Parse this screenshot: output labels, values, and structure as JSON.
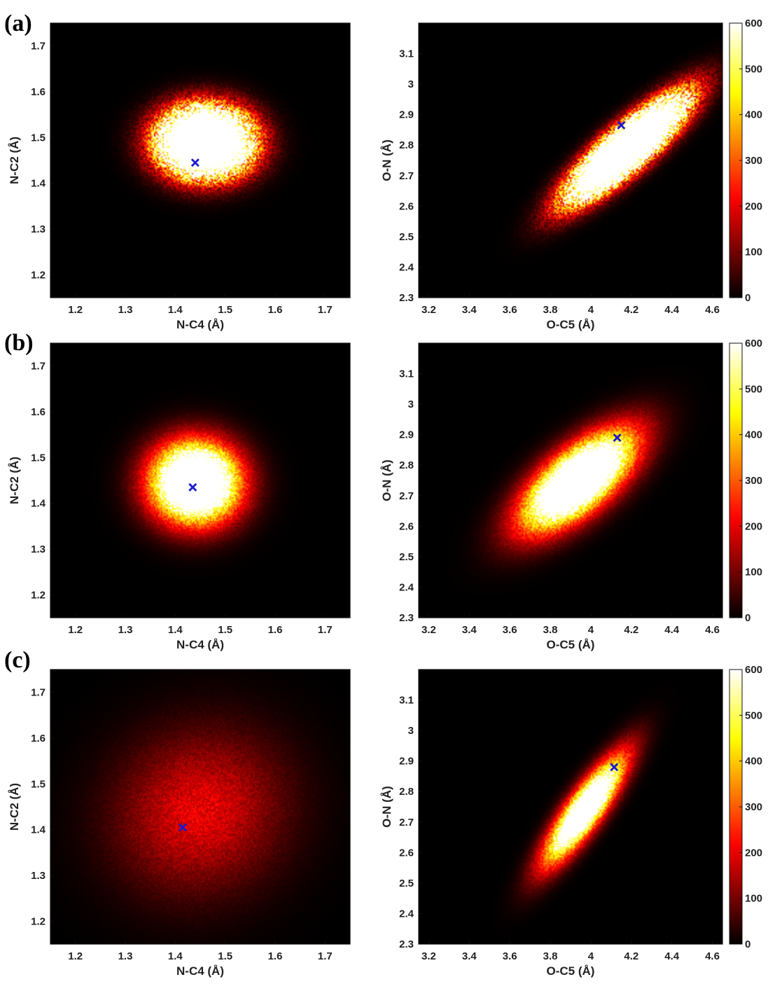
{
  "colors": {
    "background": "#ffffff",
    "marker": "#1a1acc",
    "colormap": "hot"
  },
  "chart_data": [
    {
      "panel": "(a)",
      "type": "heatmap",
      "colormap": "hot",
      "xlabel": "N-C4 (Å)",
      "ylabel": "N-C2 (Å)",
      "xlim": [
        1.15,
        1.75
      ],
      "ylim": [
        1.15,
        1.75
      ],
      "xticks": [
        1.2,
        1.3,
        1.4,
        1.5,
        1.6,
        1.7
      ],
      "yticks": [
        1.2,
        1.3,
        1.4,
        1.5,
        1.6,
        1.7
      ],
      "density": {
        "center": [
          1.46,
          1.49
        ],
        "sigma": [
          0.055,
          0.045
        ],
        "correlation": 0,
        "peak": 2500,
        "noise": 0.55
      },
      "marker": {
        "x": 1.44,
        "y": 1.445,
        "symbol": "x"
      }
    },
    {
      "panel": "(a)",
      "type": "heatmap",
      "colormap": "hot",
      "xlabel": "O-C5 (Å)",
      "ylabel": "O-N (Å)",
      "xlim": [
        3.15,
        4.65
      ],
      "ylim": [
        2.3,
        3.2
      ],
      "xticks": [
        3.2,
        3.4,
        3.6,
        3.8,
        4.0,
        4.2,
        4.4,
        4.6
      ],
      "yticks": [
        2.3,
        2.4,
        2.5,
        2.6,
        2.7,
        2.8,
        2.9,
        3.0,
        3.1
      ],
      "density": {
        "center": [
          4.18,
          2.79
        ],
        "sigma": [
          0.17,
          0.1
        ],
        "correlation": 0.86,
        "peak": 2600,
        "noise": 0.55
      },
      "marker": {
        "x": 4.15,
        "y": 2.865,
        "symbol": "x"
      },
      "colorbar": {
        "range": [
          0,
          600
        ],
        "ticks": [
          0,
          100,
          200,
          300,
          400,
          500,
          600
        ]
      }
    },
    {
      "panel": "(b)",
      "type": "heatmap",
      "colormap": "hot",
      "xlabel": "N-C4 (Å)",
      "ylabel": "N-C2 (Å)",
      "xlim": [
        1.15,
        1.75
      ],
      "ylim": [
        1.15,
        1.75
      ],
      "xticks": [
        1.2,
        1.3,
        1.4,
        1.5,
        1.6,
        1.7
      ],
      "yticks": [
        1.2,
        1.3,
        1.4,
        1.5,
        1.6,
        1.7
      ],
      "density": {
        "center": [
          1.44,
          1.445
        ],
        "sigma": [
          0.058,
          0.058
        ],
        "correlation": 0,
        "peak": 1150,
        "noise": 0.22
      },
      "marker": {
        "x": 1.435,
        "y": 1.435,
        "symbol": "x"
      }
    },
    {
      "panel": "(b)",
      "type": "heatmap",
      "colormap": "hot",
      "xlabel": "O-C5 (Å)",
      "ylabel": "O-N (Å)",
      "xlim": [
        3.15,
        4.65
      ],
      "ylim": [
        2.3,
        3.2
      ],
      "xticks": [
        3.2,
        3.4,
        3.6,
        3.8,
        4.0,
        4.2,
        4.4,
        4.6
      ],
      "yticks": [
        2.3,
        2.4,
        2.5,
        2.6,
        2.7,
        2.8,
        2.9,
        3.0,
        3.1
      ],
      "density": {
        "center": [
          3.94,
          2.75
        ],
        "sigma": [
          0.18,
          0.105
        ],
        "correlation": 0.68,
        "peak": 1150,
        "noise": 0.22
      },
      "marker": {
        "x": 4.13,
        "y": 2.89,
        "symbol": "x"
      },
      "colorbar": {
        "range": [
          0,
          600
        ],
        "ticks": [
          0,
          100,
          200,
          300,
          400,
          500,
          600
        ]
      }
    },
    {
      "panel": "(c)",
      "type": "heatmap",
      "colormap": "hot",
      "xlabel": "N-C4 (Å)",
      "ylabel": "N-C2 (Å)",
      "xlim": [
        1.15,
        1.75
      ],
      "ylim": [
        1.15,
        1.75
      ],
      "xticks": [
        1.2,
        1.3,
        1.4,
        1.5,
        1.6,
        1.7
      ],
      "yticks": [
        1.2,
        1.3,
        1.4,
        1.5,
        1.6,
        1.7
      ],
      "density": {
        "center": [
          1.45,
          1.44
        ],
        "sigma": [
          0.115,
          0.12
        ],
        "correlation": 0.08,
        "peak": 200,
        "noise": 0.25
      },
      "marker": {
        "x": 1.415,
        "y": 1.405,
        "symbol": "x"
      }
    },
    {
      "panel": "(c)",
      "type": "heatmap",
      "colormap": "hot",
      "xlabel": "O-C5 (Å)",
      "ylabel": "O-N (Å)",
      "xlim": [
        3.15,
        4.65
      ],
      "ylim": [
        2.3,
        3.2
      ],
      "xticks": [
        3.2,
        3.4,
        3.6,
        3.8,
        4.0,
        4.2,
        4.4,
        4.6
      ],
      "yticks": [
        2.3,
        2.4,
        2.5,
        2.6,
        2.7,
        2.8,
        2.9,
        3.0,
        3.1
      ],
      "density": {
        "center": [
          3.97,
          2.74
        ],
        "sigma": [
          0.13,
          0.115
        ],
        "correlation": 0.86,
        "peak": 1000,
        "noise": 0.22
      },
      "marker": {
        "x": 4.115,
        "y": 2.88,
        "symbol": "x"
      },
      "colorbar": {
        "range": [
          0,
          600
        ],
        "ticks": [
          0,
          100,
          200,
          300,
          400,
          500,
          600
        ]
      }
    }
  ]
}
